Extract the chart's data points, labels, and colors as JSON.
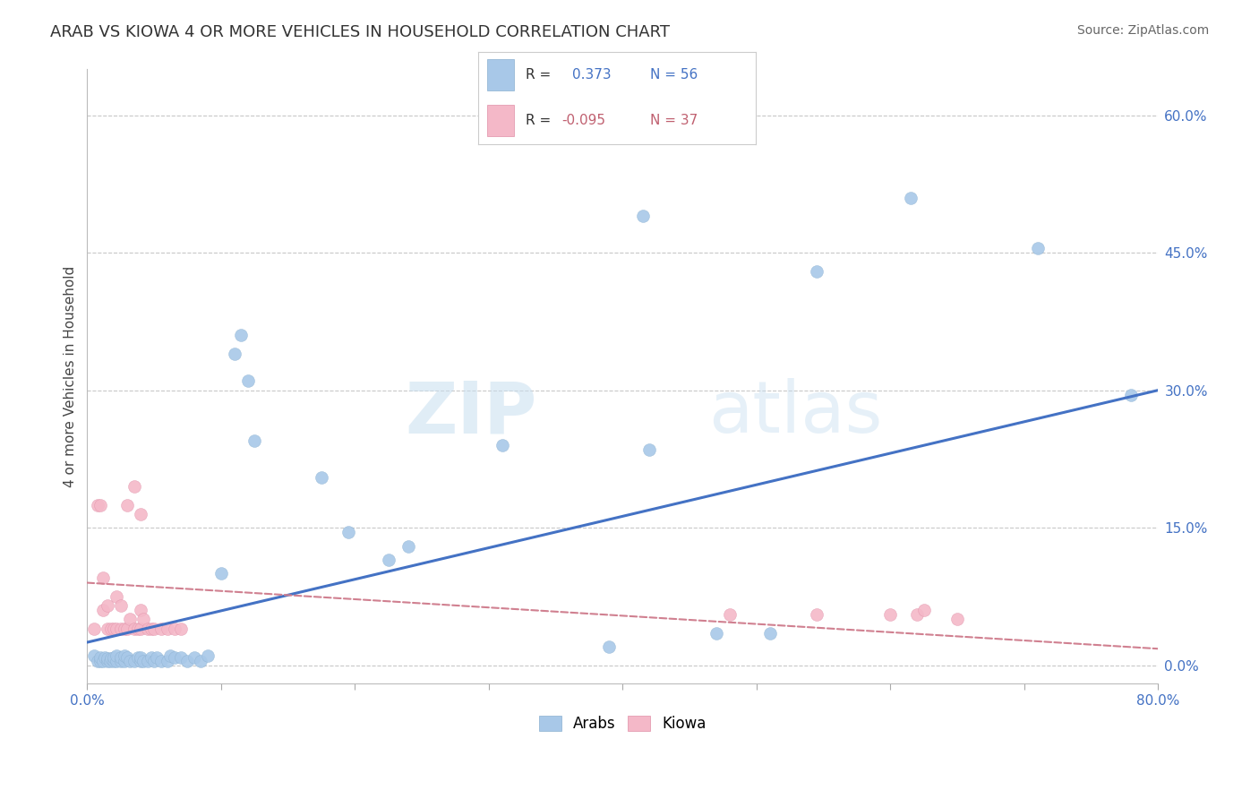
{
  "title": "ARAB VS KIOWA 4 OR MORE VEHICLES IN HOUSEHOLD CORRELATION CHART",
  "source": "Source: ZipAtlas.com",
  "ylabel": "4 or more Vehicles in Household",
  "xlim": [
    0.0,
    0.8
  ],
  "ylim": [
    -0.02,
    0.65
  ],
  "xticks": [
    0.0,
    0.1,
    0.2,
    0.3,
    0.4,
    0.5,
    0.6,
    0.7,
    0.8
  ],
  "xticklabels": [
    "0.0%",
    "",
    "",
    "",
    "",
    "",
    "",
    "",
    "80.0%"
  ],
  "ytick_positions": [
    0.0,
    0.15,
    0.3,
    0.45,
    0.6
  ],
  "ytick_labels": [
    "0.0%",
    "15.0%",
    "30.0%",
    "45.0%",
    "60.0%"
  ],
  "arab_color": "#a8c8e8",
  "kiowa_color": "#f4b8c8",
  "legend_R_color": "#4472c4",
  "legend_pink_color": "#c0607080",
  "trend_arab_color": "#4472c4",
  "trend_kiowa_color": "#d08090",
  "watermark_color": "#ddeeff",
  "background_color": "#ffffff",
  "grid_color": "#c8c8c8",
  "arab_scatter_x": [
    0.005,
    0.008,
    0.01,
    0.01,
    0.012,
    0.013,
    0.015,
    0.015,
    0.017,
    0.018,
    0.02,
    0.02,
    0.022,
    0.022,
    0.025,
    0.025,
    0.028,
    0.028,
    0.03,
    0.032,
    0.035,
    0.038,
    0.04,
    0.04,
    0.042,
    0.045,
    0.048,
    0.05,
    0.052,
    0.055,
    0.06,
    0.062,
    0.065,
    0.07,
    0.075,
    0.08,
    0.085,
    0.09,
    0.1,
    0.11,
    0.115,
    0.12,
    0.125,
    0.175,
    0.195,
    0.225,
    0.24,
    0.31,
    0.39,
    0.415,
    0.42,
    0.47,
    0.51,
    0.545,
    0.615,
    0.71,
    0.78
  ],
  "arab_scatter_y": [
    0.01,
    0.005,
    0.005,
    0.008,
    0.005,
    0.008,
    0.005,
    0.007,
    0.005,
    0.007,
    0.005,
    0.008,
    0.005,
    0.01,
    0.005,
    0.008,
    0.005,
    0.01,
    0.008,
    0.005,
    0.005,
    0.008,
    0.005,
    0.008,
    0.005,
    0.005,
    0.008,
    0.005,
    0.008,
    0.005,
    0.005,
    0.01,
    0.008,
    0.008,
    0.005,
    0.008,
    0.005,
    0.01,
    0.1,
    0.34,
    0.36,
    0.31,
    0.245,
    0.205,
    0.145,
    0.115,
    0.13,
    0.24,
    0.02,
    0.49,
    0.235,
    0.035,
    0.035,
    0.43,
    0.51,
    0.455,
    0.295
  ],
  "kiowa_scatter_x": [
    0.005,
    0.008,
    0.01,
    0.012,
    0.012,
    0.015,
    0.015,
    0.018,
    0.02,
    0.022,
    0.022,
    0.025,
    0.025,
    0.028,
    0.03,
    0.032,
    0.035,
    0.038,
    0.04,
    0.04,
    0.042,
    0.045,
    0.048,
    0.05,
    0.055,
    0.06,
    0.065,
    0.07,
    0.03,
    0.035,
    0.04,
    0.48,
    0.545,
    0.6,
    0.62,
    0.625,
    0.65
  ],
  "kiowa_scatter_y": [
    0.04,
    0.175,
    0.175,
    0.06,
    0.095,
    0.04,
    0.065,
    0.04,
    0.04,
    0.04,
    0.075,
    0.04,
    0.065,
    0.04,
    0.04,
    0.05,
    0.04,
    0.04,
    0.04,
    0.06,
    0.05,
    0.04,
    0.04,
    0.04,
    0.04,
    0.04,
    0.04,
    0.04,
    0.175,
    0.195,
    0.165,
    0.055,
    0.055,
    0.055,
    0.055,
    0.06,
    0.05
  ]
}
